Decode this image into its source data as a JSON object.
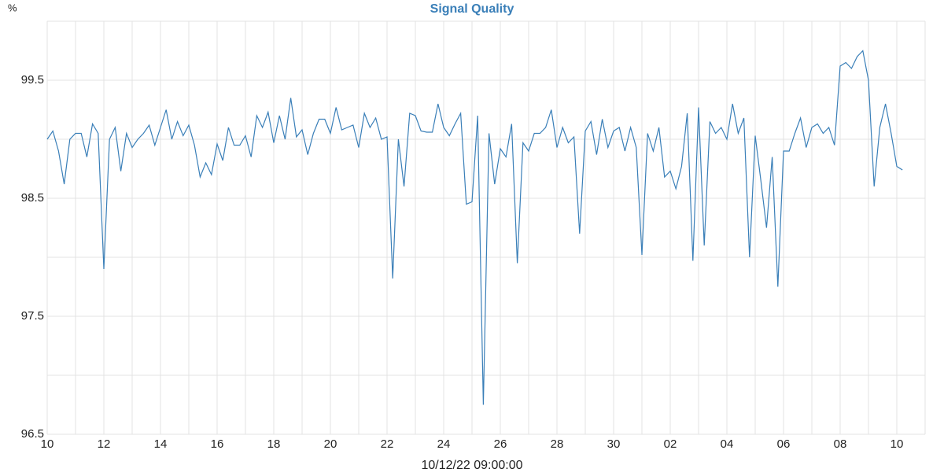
{
  "chart_data": {
    "type": "line",
    "title": "Signal Quality",
    "y_label": "%",
    "x_label": "10/12/22 09:00:00",
    "color": "#3a7fb8",
    "grid": true,
    "x": [
      0,
      0.2,
      0.4,
      0.6,
      0.8,
      1,
      1.2,
      1.4,
      1.6,
      1.8,
      2,
      2.2,
      2.4,
      2.6,
      2.8,
      3,
      3.2,
      3.4,
      3.6,
      3.8,
      4,
      4.2,
      4.4,
      4.6,
      4.8,
      5,
      5.2,
      5.4,
      5.6,
      5.8,
      6,
      6.2,
      6.4,
      6.6,
      6.8,
      7,
      7.2,
      7.4,
      7.6,
      7.8,
      8,
      8.2,
      8.4,
      8.6,
      8.8,
      9,
      9.2,
      9.4,
      9.6,
      9.8,
      10,
      10.2,
      10.4,
      10.6,
      10.8,
      11,
      11.2,
      11.4,
      11.6,
      11.8,
      12,
      12.2,
      12.4,
      12.6,
      12.8,
      13,
      13.2,
      13.4,
      13.6,
      13.8,
      14,
      14.2,
      14.4,
      14.6,
      14.8,
      15,
      15.2,
      15.4,
      15.6,
      15.8,
      16,
      16.2,
      16.4,
      16.6,
      16.8,
      17,
      17.2,
      17.4,
      17.6,
      17.8,
      18,
      18.2,
      18.4,
      18.6,
      18.8,
      19,
      19.2,
      19.4,
      19.6,
      19.8,
      20,
      20.2,
      20.4,
      20.6,
      20.8,
      21,
      21.2,
      21.4,
      21.6,
      21.8,
      22,
      22.2,
      22.4,
      22.6,
      22.8,
      23,
      23.2,
      23.4,
      23.6,
      23.8,
      24,
      24.2,
      24.4,
      24.6,
      24.8,
      25,
      25.2,
      25.4,
      25.6,
      25.8,
      26,
      26.2,
      26.4,
      26.6,
      26.8,
      27,
      27.2,
      27.4,
      27.6,
      27.8,
      28,
      28.2,
      28.4,
      28.6,
      28.8,
      29,
      29.2,
      29.4,
      29.6,
      29.8,
      30,
      30.2
    ],
    "values": [
      99.0,
      99.07,
      98.9,
      98.62,
      99.0,
      99.05,
      99.05,
      98.85,
      99.13,
      99.05,
      97.9,
      99.0,
      99.1,
      98.73,
      99.05,
      98.93,
      99.0,
      99.05,
      99.12,
      98.95,
      99.1,
      99.25,
      99.0,
      99.15,
      99.03,
      99.12,
      98.95,
      98.68,
      98.8,
      98.7,
      98.96,
      98.82,
      99.1,
      98.95,
      98.95,
      99.03,
      98.85,
      99.2,
      99.1,
      99.23,
      98.97,
      99.2,
      99.0,
      99.35,
      99.02,
      99.08,
      98.87,
      99.05,
      99.17,
      99.17,
      99.05,
      99.27,
      99.08,
      99.1,
      99.12,
      98.93,
      99.22,
      99.1,
      99.18,
      99.0,
      99.02,
      97.82,
      99.0,
      98.6,
      99.22,
      99.2,
      99.07,
      99.06,
      99.06,
      99.3,
      99.1,
      99.03,
      99.13,
      99.22,
      98.45,
      98.47,
      99.2,
      96.75,
      99.05,
      98.62,
      98.92,
      98.85,
      99.13,
      97.95,
      98.97,
      98.9,
      99.05,
      99.05,
      99.1,
      99.25,
      98.93,
      99.1,
      98.97,
      99.02,
      98.2,
      99.07,
      99.15,
      98.87,
      99.17,
      98.93,
      99.07,
      99.1,
      98.9,
      99.1,
      98.93,
      98.02,
      99.05,
      98.9,
      99.1,
      98.68,
      98.73,
      98.58,
      98.77,
      99.22,
      97.97,
      99.27,
      98.1,
      99.15,
      99.05,
      99.1,
      99.0,
      99.3,
      99.05,
      99.18,
      98.0,
      99.03,
      98.65,
      98.25,
      98.85,
      97.75,
      98.9,
      98.9,
      99.05,
      99.18,
      98.93,
      99.1,
      99.13,
      99.05,
      99.1,
      98.95,
      99.62,
      99.65,
      99.6,
      99.7,
      99.75,
      99.5,
      98.6,
      99.1,
      99.3,
      99.05,
      98.77,
      98.74
    ],
    "xlim": [
      0,
      31
    ],
    "ylim": [
      96.5,
      100
    ],
    "xticks": [
      {
        "value": 0,
        "label": "10"
      },
      {
        "value": 2,
        "label": "12"
      },
      {
        "value": 4,
        "label": "14"
      },
      {
        "value": 6,
        "label": "16"
      },
      {
        "value": 8,
        "label": "18"
      },
      {
        "value": 10,
        "label": "20"
      },
      {
        "value": 12,
        "label": "22"
      },
      {
        "value": 14,
        "label": "24"
      },
      {
        "value": 16,
        "label": "26"
      },
      {
        "value": 18,
        "label": "28"
      },
      {
        "value": 20,
        "label": "30"
      },
      {
        "value": 22,
        "label": "02"
      },
      {
        "value": 24,
        "label": "04"
      },
      {
        "value": 26,
        "label": "06"
      },
      {
        "value": 28,
        "label": "08"
      },
      {
        "value": 30,
        "label": "10"
      }
    ],
    "x_minor_grid": [
      1,
      3,
      5,
      7,
      9,
      11,
      13,
      15,
      17,
      19,
      21,
      23,
      25,
      27,
      29,
      31
    ],
    "yticks": [
      96.5,
      97.5,
      98.5,
      99.5
    ],
    "y_minor_grid": [
      97,
      98,
      99,
      100
    ]
  }
}
